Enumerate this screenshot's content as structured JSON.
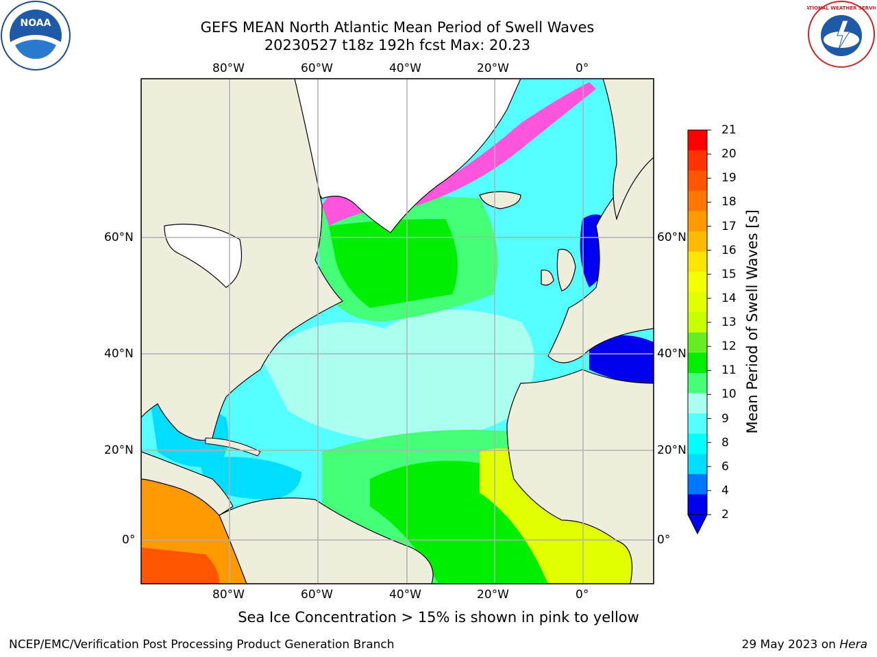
{
  "title": {
    "line1": "GEFS MEAN North Atlantic Mean Period of Swell Waves",
    "line2": "20230527 t18z 192h fcst   Max: 20.23"
  },
  "map": {
    "lon_labels_top": [
      "80°W",
      "60°W",
      "40°W",
      "20°W",
      "0°"
    ],
    "lon_labels_bottom": [
      "80°W",
      "60°W",
      "40°W",
      "20°W",
      "0°"
    ],
    "lat_labels_left": [
      "60°N",
      "40°N",
      "20°N",
      "0°"
    ],
    "lat_labels_right": [
      "60°N",
      "40°N",
      "20°N",
      "0°"
    ],
    "land_color": "#efeddc",
    "grid_color": "#b0b0b0"
  },
  "colorbar": {
    "label": "Mean Period of Swell Waves [s]",
    "ticks": [
      "21",
      "20",
      "19",
      "18",
      "17",
      "16",
      "15",
      "14",
      "13",
      "12",
      "11",
      "10",
      "9",
      "8",
      "6",
      "4",
      "2"
    ],
    "colors": [
      "#ff0000",
      "#ff3300",
      "#ff5500",
      "#ff7700",
      "#ff9900",
      "#ffbb00",
      "#ffe400",
      "#f4ff00",
      "#e2ff00",
      "#c8ff00",
      "#66ee22",
      "#00ee00",
      "#44ff77",
      "#aaffee",
      "#55ffff",
      "#00ffff",
      "#00ddff",
      "#0077ff",
      "#0000ee"
    ]
  },
  "caption": "Sea Ice Concentration > 15% is shown in pink to yellow",
  "footer": {
    "left": "NCEP/EMC/Verification Post Processing Product Generation Branch",
    "date": "29 May 2023 on ",
    "machine": "Hera"
  },
  "logos": {
    "noaa_text": "NOAA",
    "nws_text": "NATIONAL WEATHER SERVICE"
  }
}
